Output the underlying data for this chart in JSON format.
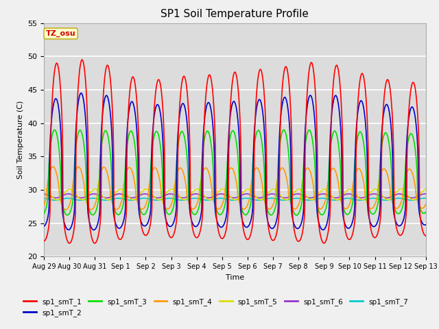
{
  "title": "SP1 Soil Temperature Profile",
  "xlabel": "Time",
  "ylabel": "Soil Temperature (C)",
  "ylim": [
    20,
    55
  ],
  "annotation": "TZ_osu",
  "annotation_color": "#cc0000",
  "annotation_bg": "#ffffcc",
  "annotation_border": "#bbaa00",
  "series_colors": {
    "sp1_smT_1": "#ff0000",
    "sp1_smT_2": "#0000cc",
    "sp1_smT_3": "#00dd00",
    "sp1_smT_4": "#ff9900",
    "sp1_smT_5": "#dddd00",
    "sp1_smT_6": "#9933cc",
    "sp1_smT_7": "#00cccc"
  },
  "fig_bg": "#f0f0f0",
  "plot_bg": "#dcdcdc",
  "xtick_labels": [
    "Aug 29",
    "Aug 30",
    "Aug 31",
    "Sep 1",
    "Sep 2",
    "Sep 3",
    "Sep 4",
    "Sep 5",
    "Sep 6",
    "Sep 7",
    "Sep 8",
    "Sep 9",
    "Sep 10",
    "Sep 11",
    "Sep 12",
    "Sep 13"
  ],
  "grid_color": "#ffffff",
  "line_width": 1.2
}
